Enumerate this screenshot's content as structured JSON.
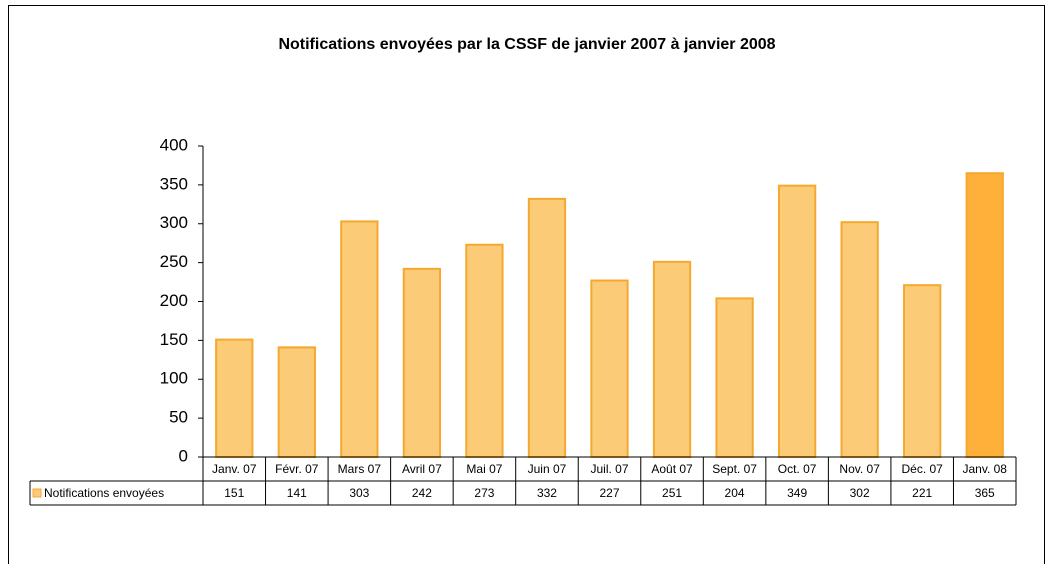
{
  "chart_data": {
    "type": "bar",
    "title": "Notifications envoyées par la CSSF de janvier 2007 à janvier 2008",
    "categories": [
      "Janv. 07",
      "Févr. 07",
      "Mars 07",
      "Avril 07",
      "Mai 07",
      "Juin 07",
      "Juil. 07",
      "Août 07",
      "Sept. 07",
      "Oct. 07",
      "Nov. 07",
      "Déc. 07",
      "Janv. 08"
    ],
    "series": [
      {
        "name": "Notifications envoyées",
        "color": "#fccb78",
        "colors": [
          "#fccb78",
          "#fccb78",
          "#fccb78",
          "#fccb78",
          "#fccb78",
          "#fccb78",
          "#fccb78",
          "#fccb78",
          "#fccb78",
          "#fccb78",
          "#fccb78",
          "#fccb78",
          "#ffb03a"
        ],
        "values": [
          151,
          141,
          303,
          242,
          273,
          332,
          227,
          251,
          204,
          349,
          302,
          221,
          365
        ]
      }
    ],
    "ylim": [
      0,
      400
    ],
    "yticks": [
      0,
      50,
      100,
      150,
      200,
      250,
      300,
      350,
      400
    ],
    "grid": false,
    "data_table": true
  }
}
